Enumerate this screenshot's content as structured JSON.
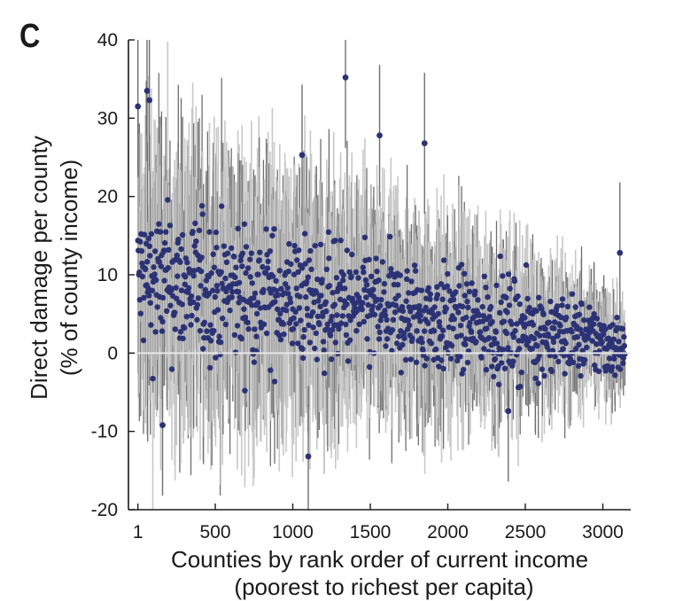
{
  "panel_label": "C",
  "chart_data": {
    "type": "scatter",
    "title": "",
    "xlabel": "Counties by rank order of current income",
    "xlabel_sub": "(poorest to richest per capita)",
    "ylabel": "Direct damage per county",
    "ylabel_sub": "(% of county income)",
    "xlim": [
      -60,
      3180
    ],
    "ylim": [
      -20,
      40
    ],
    "x_ticks": [
      1,
      500,
      1000,
      1500,
      2000,
      2500,
      3000
    ],
    "x_tick_labels": [
      "1",
      "500",
      "1000",
      "1500",
      "2000",
      "2500",
      "3000"
    ],
    "y_ticks": [
      -20,
      -10,
      0,
      10,
      20,
      30,
      40
    ],
    "y_tick_labels": [
      "-20",
      "-10",
      "0",
      "10",
      "20",
      "30",
      "40"
    ],
    "grid": false,
    "zero_line": true,
    "colors": {
      "points": "#2b3275",
      "bars_light": "#c8c8c8",
      "bars_dark": "#6e6e6e",
      "zero_line": "#e6e6e6"
    },
    "notable_points": [
      {
        "x": 1,
        "y": 31.5
      },
      {
        "x": 60,
        "y": 33.5
      },
      {
        "x": 75,
        "y": 32.3
      },
      {
        "x": 1100,
        "y": -13.2
      },
      {
        "x": 1340,
        "y": 35.2
      },
      {
        "x": 1560,
        "y": 27.8
      },
      {
        "x": 1850,
        "y": 26.8
      },
      {
        "x": 1060,
        "y": 25.3
      },
      {
        "x": 160,
        "y": -9.2
      },
      {
        "x": 2390,
        "y": -7.4
      },
      {
        "x": 3110,
        "y": 12.8
      }
    ],
    "trend": [
      {
        "x": 1,
        "mean": 9.5,
        "spread": 6.5,
        "ci": 14
      },
      {
        "x": 500,
        "mean": 8.0,
        "spread": 6.0,
        "ci": 13
      },
      {
        "x": 1000,
        "mean": 7.0,
        "spread": 5.5,
        "ci": 12
      },
      {
        "x": 1500,
        "mean": 5.5,
        "spread": 5.0,
        "ci": 10
      },
      {
        "x": 2000,
        "mean": 4.0,
        "spread": 4.5,
        "ci": 9
      },
      {
        "x": 2500,
        "mean": 3.0,
        "spread": 4.0,
        "ci": 7
      },
      {
        "x": 3000,
        "mean": 1.5,
        "spread": 3.0,
        "ci": 5
      },
      {
        "x": 3140,
        "mean": 0.5,
        "spread": 2.5,
        "ci": 4
      }
    ],
    "n_counties": 3143
  }
}
